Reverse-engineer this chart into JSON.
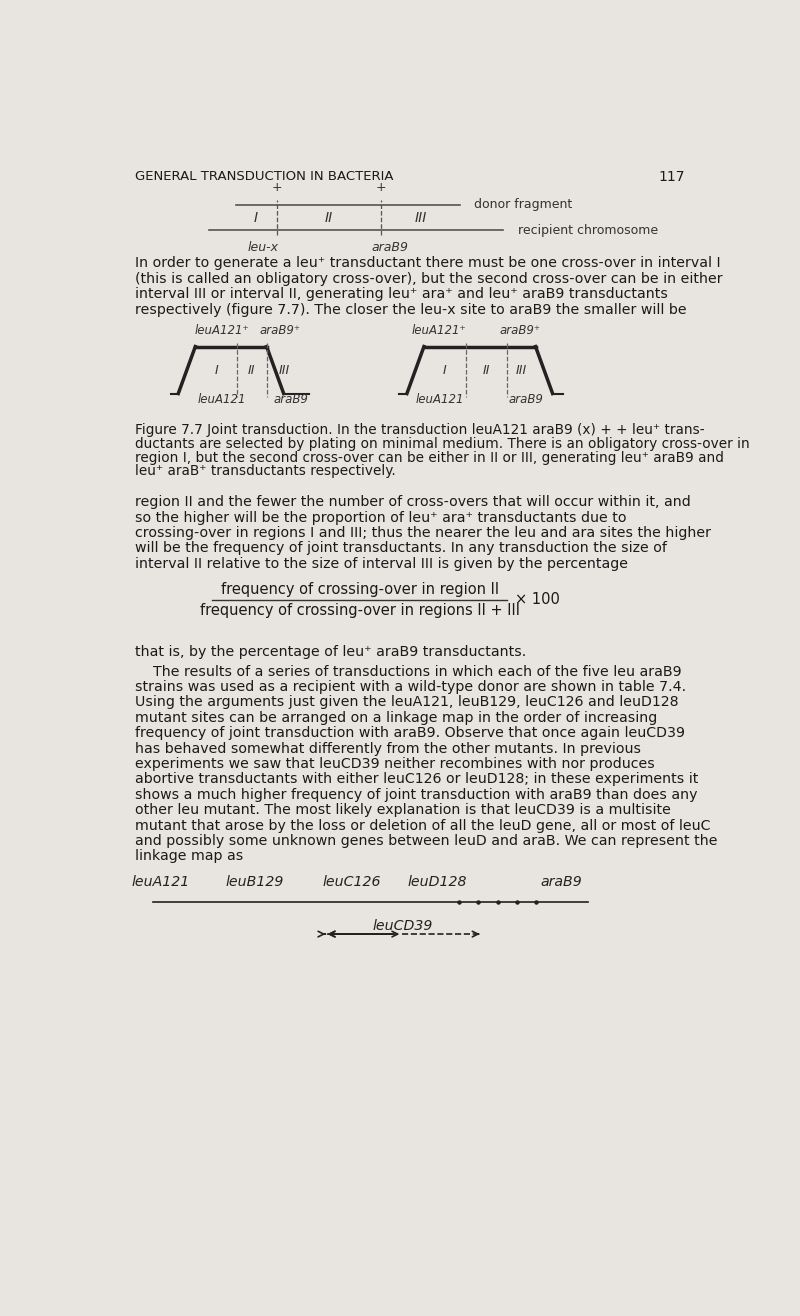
{
  "page_number": "117",
  "header": "GENERAL TRANSDUCTION IN BACTERIA",
  "bg_color": "#e8e4df",
  "text_color": "#1a1a1a",
  "formula_top": "frequency of crossing-over in region II",
  "formula_bottom": "frequency of crossing-over in regions II + III",
  "formula_x100": "× 100",
  "linkage_map_labels": [
    "leuA121",
    "leuB129",
    "leuC126",
    "leuD128",
    "araB9"
  ],
  "leuCD39_label": "leuCD39",
  "top_diagram": {
    "donor_label": "donor fragment",
    "recipient_label": "recipient chromosome",
    "bottom_labels": [
      "leu-x",
      "araB9"
    ]
  }
}
